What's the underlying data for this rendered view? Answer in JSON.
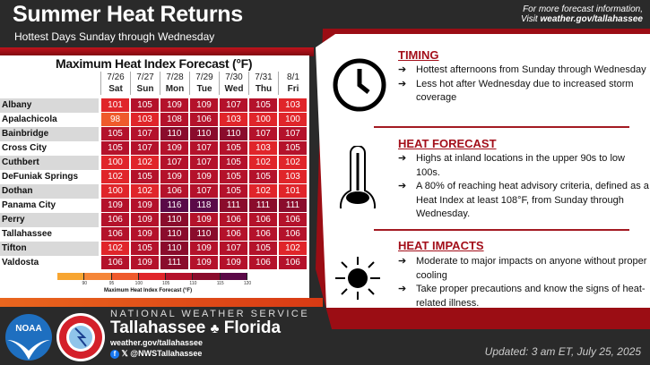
{
  "header": {
    "title": "Summer Heat Returns",
    "subtitle": "Hottest Days Sunday through Wednesday",
    "more_info": "For more forecast information,",
    "visit_prefix": "Visit ",
    "visit_url": "weather.gov/tallahassee"
  },
  "chart_data": {
    "type": "heatmap",
    "title": "Maximum Heat Index Forecast (°F)",
    "dates": [
      "7/26",
      "7/27",
      "7/28",
      "7/29",
      "7/30",
      "7/31",
      "8/1"
    ],
    "days": [
      "Sat",
      "Sun",
      "Mon",
      "Tue",
      "Wed",
      "Thu",
      "Fri"
    ],
    "rows": [
      {
        "name": "Albany",
        "values": [
          101,
          105,
          109,
          109,
          107,
          105,
          103
        ]
      },
      {
        "name": "Apalachicola",
        "values": [
          98,
          103,
          108,
          106,
          103,
          100,
          100
        ]
      },
      {
        "name": "Bainbridge",
        "values": [
          105,
          107,
          110,
          110,
          110,
          107,
          107
        ]
      },
      {
        "name": "Cross City",
        "values": [
          105,
          107,
          109,
          107,
          105,
          103,
          105
        ]
      },
      {
        "name": "Cuthbert",
        "values": [
          100,
          102,
          107,
          107,
          105,
          102,
          102
        ]
      },
      {
        "name": "DeFuniak Springs",
        "values": [
          102,
          105,
          109,
          109,
          105,
          105,
          103
        ]
      },
      {
        "name": "Dothan",
        "values": [
          100,
          102,
          106,
          107,
          105,
          102,
          101
        ]
      },
      {
        "name": "Panama City",
        "values": [
          109,
          109,
          116,
          118,
          111,
          111,
          111
        ]
      },
      {
        "name": "Perry",
        "values": [
          106,
          109,
          110,
          109,
          106,
          106,
          106
        ]
      },
      {
        "name": "Tallahassee",
        "values": [
          106,
          109,
          110,
          110,
          106,
          106,
          106
        ]
      },
      {
        "name": "Tifton",
        "values": [
          102,
          105,
          110,
          109,
          107,
          105,
          102
        ]
      },
      {
        "name": "Valdosta",
        "values": [
          106,
          109,
          111,
          109,
          109,
          106,
          106
        ]
      }
    ],
    "colorbar": {
      "title": "Maximum Heat Index Forecast (°F)",
      "ticks": [
        "90",
        "95",
        "100",
        "105",
        "110",
        "115",
        "120"
      ],
      "colors": [
        "#f7a531",
        "#f58638",
        "#ef5a2c",
        "#e0252a",
        "#b4122b",
        "#8a0c2c",
        "#5a0a48"
      ]
    }
  },
  "timing": {
    "heading": "TIMING",
    "bullets": [
      "Hottest afternoons from Sunday through Wednesday",
      "Less hot after Wednesday due to increased storm coverage"
    ]
  },
  "heat_forecast": {
    "heading": "HEAT FORECAST",
    "bullets": [
      "Highs at inland locations in the upper 90s to low 100s.",
      "A 80% of reaching heat advisory criteria, defined as a Heat Index at least 108°F, from Sunday through Wednesday."
    ]
  },
  "heat_impacts": {
    "heading": "HEAT IMPACTS",
    "bullets": [
      "Moderate to major impacts on anyone without proper cooling",
      "Take proper precautions and know the signs of heat-related illness."
    ]
  },
  "arrow": "➔",
  "footer": {
    "agency": "NATIONAL WEATHER SERVICE",
    "office_city": "Tallahassee",
    "office_state": "Florida",
    "url": "weather.gov/tallahassee",
    "social": "@NWSTallahassee",
    "updated": "Updated: 3 am ET, July 25, 2025",
    "noaa": "NOAA",
    "nws_seal": "NATIONAL WEATHER SERVICE"
  }
}
